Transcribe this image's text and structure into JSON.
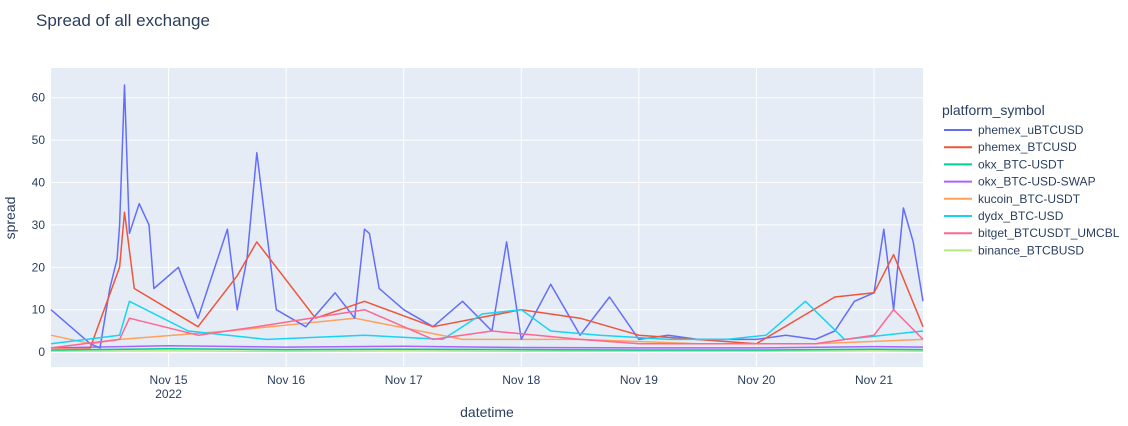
{
  "chart_data": {
    "type": "line",
    "title": "Spread of all exchange",
    "xlabel": "datetime",
    "ylabel": "spread",
    "ylim": [
      -3.5,
      67
    ],
    "xlim": [
      "2022-11-14 00:00",
      "2022-11-21 10:00"
    ],
    "y_ticks": [
      0,
      10,
      20,
      30,
      40,
      50,
      60
    ],
    "x_ticks": [
      {
        "label": "Nov 15",
        "sublabel": "2022",
        "value": "2022-11-15 00:00"
      },
      {
        "label": "Nov 16",
        "sublabel": "",
        "value": "2022-11-16 00:00"
      },
      {
        "label": "Nov 17",
        "sublabel": "",
        "value": "2022-11-17 00:00"
      },
      {
        "label": "Nov 18",
        "sublabel": "",
        "value": "2022-11-18 00:00"
      },
      {
        "label": "Nov 19",
        "sublabel": "",
        "value": "2022-11-19 00:00"
      },
      {
        "label": "Nov 20",
        "sublabel": "",
        "value": "2022-11-20 00:00"
      },
      {
        "label": "Nov 21",
        "sublabel": "",
        "value": "2022-11-21 00:00"
      }
    ],
    "grid": true,
    "legend_title": "platform_symbol",
    "legend_position": "right",
    "series": [
      {
        "name": "phemex_uBTCUSD",
        "color": "#636efa",
        "x": [
          "2022-11-14 00:00",
          "2022-11-14 08:00",
          "2022-11-14 10:00",
          "2022-11-14 12:00",
          "2022-11-14 13:30",
          "2022-11-14 14:00",
          "2022-11-14 15:00",
          "2022-11-14 16:00",
          "2022-11-14 18:00",
          "2022-11-14 20:00",
          "2022-11-14 21:00",
          "2022-11-15 02:00",
          "2022-11-15 06:00",
          "2022-11-15 12:00",
          "2022-11-15 14:00",
          "2022-11-15 16:00",
          "2022-11-15 18:00",
          "2022-11-15 22:00",
          "2022-11-16 04:00",
          "2022-11-16 10:00",
          "2022-11-16 14:00",
          "2022-11-16 16:00",
          "2022-11-16 17:00",
          "2022-11-16 19:00",
          "2022-11-17 00:00",
          "2022-11-17 06:00",
          "2022-11-17 12:00",
          "2022-11-17 18:00",
          "2022-11-17 21:00",
          "2022-11-18 00:00",
          "2022-11-18 06:00",
          "2022-11-18 12:00",
          "2022-11-18 18:00",
          "2022-11-19 00:00",
          "2022-11-19 06:00",
          "2022-11-19 12:00",
          "2022-11-19 18:00",
          "2022-11-20 00:00",
          "2022-11-20 06:00",
          "2022-11-20 12:00",
          "2022-11-20 16:00",
          "2022-11-20 20:00",
          "2022-11-21 00:00",
          "2022-11-21 02:00",
          "2022-11-21 04:00",
          "2022-11-21 06:00",
          "2022-11-21 08:00",
          "2022-11-21 10:00"
        ],
        "y": [
          10,
          2,
          1,
          15,
          22,
          30,
          63,
          28,
          35,
          30,
          15,
          20,
          8,
          29,
          10,
          22,
          47,
          10,
          6,
          14,
          8,
          29,
          28,
          15,
          10,
          6,
          12,
          5,
          26,
          3,
          16,
          4,
          13,
          3,
          4,
          3,
          3,
          3,
          4,
          3,
          5,
          12,
          14,
          29,
          10,
          34,
          26,
          12
        ]
      },
      {
        "name": "phemex_BTCUSD",
        "color": "#ef553b",
        "x": [
          "2022-11-14 00:00",
          "2022-11-14 08:00",
          "2022-11-14 14:00",
          "2022-11-14 15:00",
          "2022-11-14 17:00",
          "2022-11-15 06:00",
          "2022-11-15 14:00",
          "2022-11-15 18:00",
          "2022-11-16 06:00",
          "2022-11-16 16:00",
          "2022-11-17 06:00",
          "2022-11-18 00:00",
          "2022-11-18 12:00",
          "2022-11-19 00:00",
          "2022-11-20 00:00",
          "2022-11-20 16:00",
          "2022-11-21 00:00",
          "2022-11-21 04:00",
          "2022-11-21 10:00"
        ],
        "y": [
          1,
          1,
          20,
          33,
          15,
          6,
          18,
          26,
          8,
          12,
          6,
          10,
          8,
          4,
          2,
          13,
          14,
          23,
          6
        ]
      },
      {
        "name": "okx_BTC-USDT",
        "color": "#00cc96",
        "x": [
          "2022-11-14 00:00",
          "2022-11-15 00:00",
          "2022-11-16 00:00",
          "2022-11-17 00:00",
          "2022-11-18 00:00",
          "2022-11-19 00:00",
          "2022-11-20 00:00",
          "2022-11-21 00:00",
          "2022-11-21 10:00"
        ],
        "y": [
          0.5,
          0.8,
          0.6,
          0.7,
          0.6,
          0.5,
          0.5,
          0.7,
          0.6
        ]
      },
      {
        "name": "okx_BTC-USD-SWAP",
        "color": "#ab63fa",
        "x": [
          "2022-11-14 00:00",
          "2022-11-15 00:00",
          "2022-11-16 00:00",
          "2022-11-17 00:00",
          "2022-11-18 00:00",
          "2022-11-19 00:00",
          "2022-11-20 00:00",
          "2022-11-21 00:00",
          "2022-11-21 10:00"
        ],
        "y": [
          1,
          1.5,
          1.2,
          1.4,
          1.1,
          1,
          1,
          1.3,
          1.2
        ]
      },
      {
        "name": "kucoin_BTC-USDT",
        "color": "#ffa15a",
        "x": [
          "2022-11-14 00:00",
          "2022-11-14 08:00",
          "2022-11-14 14:00",
          "2022-11-15 12:00",
          "2022-11-16 14:00",
          "2022-11-17 12:00",
          "2022-11-18 12:00",
          "2022-11-19 12:00",
          "2022-11-20 12:00",
          "2022-11-21 10:00"
        ],
        "y": [
          4,
          2,
          3,
          5,
          8,
          3,
          3,
          2,
          2,
          3
        ]
      },
      {
        "name": "dydx_BTC-USD",
        "color": "#19d3f3",
        "x": [
          "2022-11-14 00:00",
          "2022-11-14 14:00",
          "2022-11-14 16:00",
          "2022-11-15 04:00",
          "2022-11-15 20:00",
          "2022-11-16 16:00",
          "2022-11-17 08:00",
          "2022-11-17 16:00",
          "2022-11-18 00:00",
          "2022-11-18 06:00",
          "2022-11-18 16:00",
          "2022-11-19 06:00",
          "2022-11-19 18:00",
          "2022-11-20 02:00",
          "2022-11-20 10:00",
          "2022-11-20 18:00",
          "2022-11-21 02:00",
          "2022-11-21 10:00"
        ],
        "y": [
          2,
          4,
          12,
          5,
          3,
          4,
          3,
          9,
          10,
          5,
          4,
          3,
          3,
          4,
          12,
          3,
          4,
          5
        ]
      },
      {
        "name": "bitget_BTCUSDT_UMCBL",
        "color": "#ff6692",
        "x": [
          "2022-11-14 00:00",
          "2022-11-14 14:00",
          "2022-11-14 16:00",
          "2022-11-15 06:00",
          "2022-11-15 18:00",
          "2022-11-16 16:00",
          "2022-11-17 06:00",
          "2022-11-17 18:00",
          "2022-11-18 12:00",
          "2022-11-19 00:00",
          "2022-11-19 12:00",
          "2022-11-20 00:00",
          "2022-11-20 12:00",
          "2022-11-21 00:00",
          "2022-11-21 04:00",
          "2022-11-21 10:00"
        ],
        "y": [
          1,
          3,
          8,
          4,
          6,
          10,
          3,
          5,
          3,
          2,
          2,
          2,
          2,
          4,
          10,
          3
        ]
      },
      {
        "name": "binance_BTCBUSD",
        "color": "#b6e880",
        "x": [
          "2022-11-14 00:00",
          "2022-11-15 00:00",
          "2022-11-16 00:00",
          "2022-11-17 00:00",
          "2022-11-18 00:00",
          "2022-11-19 00:00",
          "2022-11-20 00:00",
          "2022-11-21 00:00",
          "2022-11-21 10:00"
        ],
        "y": [
          0.2,
          0.3,
          0.2,
          0.3,
          0.2,
          0.2,
          0.2,
          0.3,
          0.2
        ]
      }
    ]
  }
}
